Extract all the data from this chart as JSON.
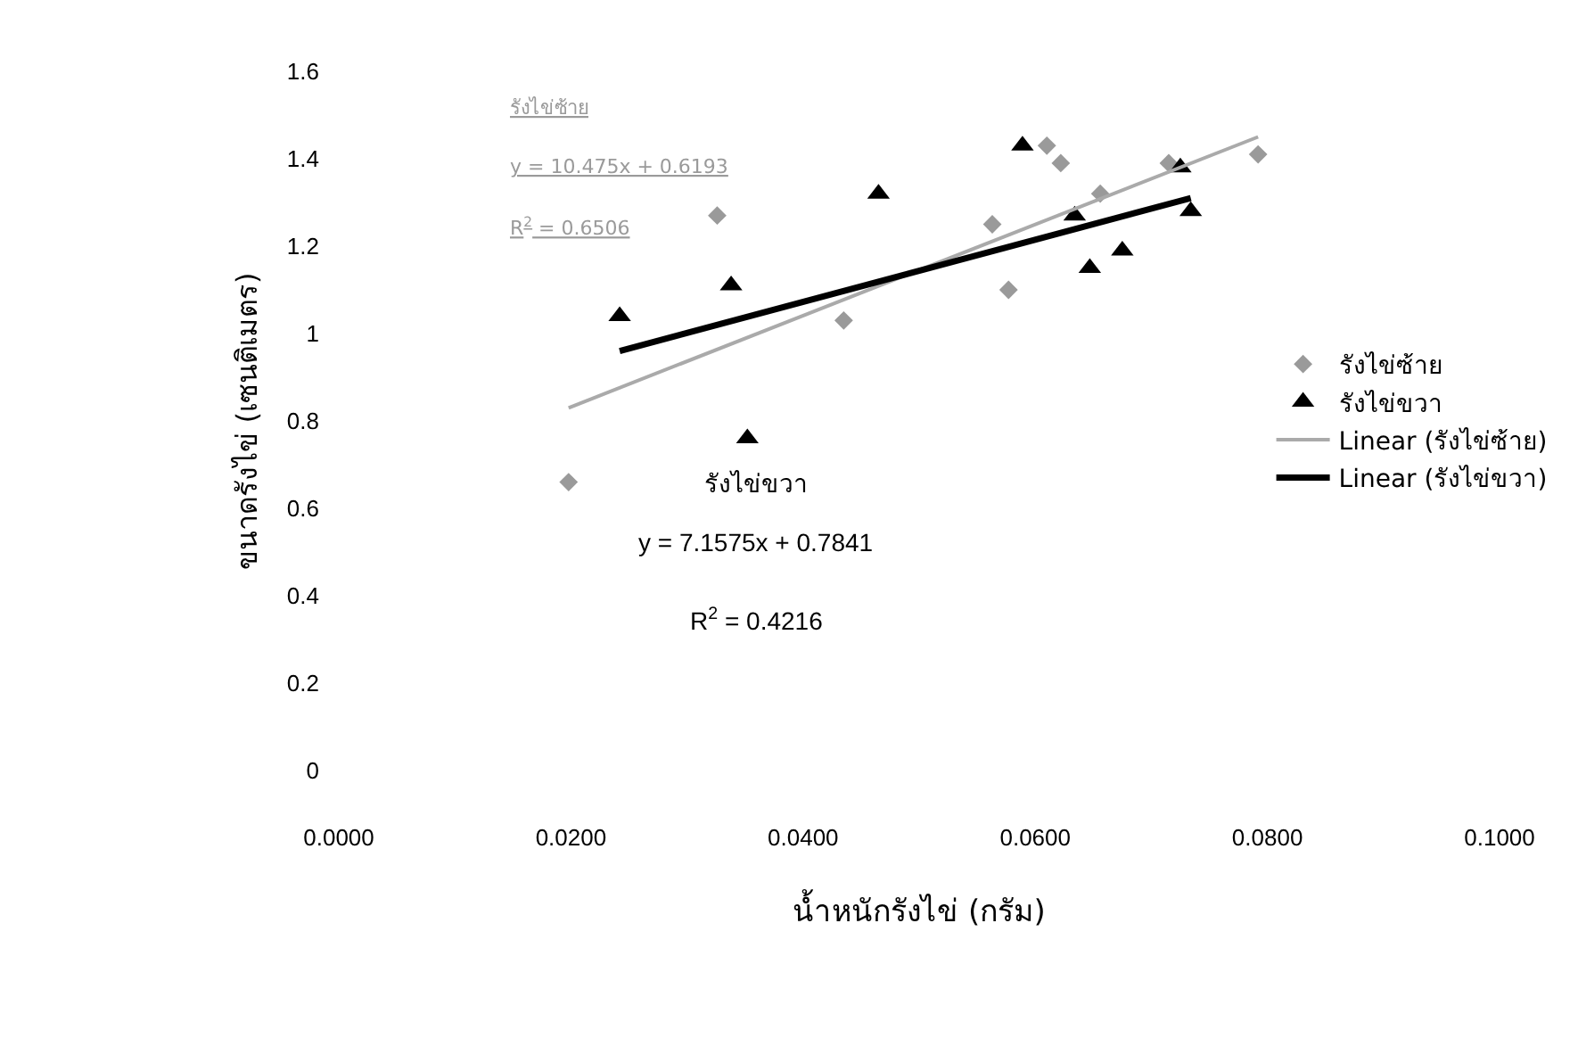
{
  "chart_data": {
    "type": "scatter",
    "xlabel": "น้ำหนักรังไข่ (กรัม)",
    "ylabel": "ขนาดรังไข่ (เซนติเมตร)",
    "series": [
      {
        "name": "รังไข่ซ้าย",
        "marker": "diamond",
        "color": "#9a9a9a",
        "x": [
          0.0198,
          0.0326,
          0.0435,
          0.0563,
          0.0577,
          0.061,
          0.0622,
          0.0656,
          0.0715,
          0.0792
        ],
        "values": [
          0.66,
          1.27,
          1.03,
          1.25,
          1.1,
          1.43,
          1.39,
          1.32,
          1.39,
          1.41
        ]
      },
      {
        "name": "รังไข่ขวา",
        "marker": "triangle",
        "color": "#000000",
        "x": [
          0.0242,
          0.0338,
          0.0352,
          0.0465,
          0.0589,
          0.0634,
          0.0647,
          0.0675,
          0.0725,
          0.0734
        ],
        "values": [
          1.04,
          1.11,
          0.76,
          1.32,
          1.43,
          1.27,
          1.15,
          1.19,
          1.38,
          1.28
        ]
      },
      {
        "name": "Linear (รังไข่ซ้าย)",
        "type": "line",
        "color": "#aaaaaa",
        "x": [
          0.0198,
          0.0792
        ],
        "values": [
          0.83,
          1.45
        ]
      },
      {
        "name": "Linear (รังไข่ขวา)",
        "type": "line",
        "color": "#000000",
        "x": [
          0.0242,
          0.0734
        ],
        "values": [
          0.96,
          1.31
        ]
      }
    ],
    "annotations": [
      "รังไข่ซ้าย",
      "y = 10.475x + 0.6193",
      "R$^{2}$ = 0.6506",
      "รังไข่ขวา",
      "y = 7.1575x + 0.7841",
      "R$^{2}$ = 0.4216"
    ],
    "xlim": [
      0,
      0.1
    ],
    "ylim": [
      0,
      1.6
    ],
    "xticks": [
      {
        "value": 0,
        "label": "0.0000"
      },
      {
        "value": 0.02,
        "label": "0.0200"
      },
      {
        "value": 0.04,
        "label": "0.0400"
      },
      {
        "value": 0.06,
        "label": "0.0600"
      },
      {
        "value": 0.08,
        "label": "0.0800"
      },
      {
        "value": 0.1,
        "label": "0.1000"
      }
    ],
    "yticks": [
      0,
      0.2,
      0.4,
      0.6,
      0.8,
      1,
      1.2,
      1.4,
      1.6
    ],
    "legend": "right"
  }
}
